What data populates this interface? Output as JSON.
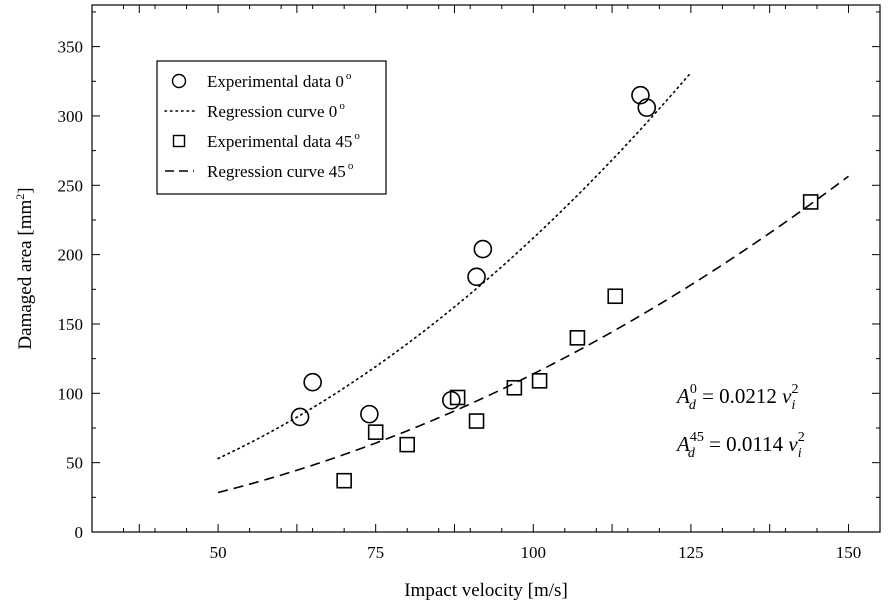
{
  "chart_data": {
    "type": "scatter",
    "xlabel": "Impact velocity [m/s]",
    "ylabel_main": "Damaged area [mm",
    "ylabel_sup": "2",
    "ylabel_end": "]",
    "xlim": [
      30,
      155
    ],
    "ylim": [
      0,
      380
    ],
    "x_ticks": [
      50,
      75,
      100,
      125,
      150
    ],
    "y_ticks": [
      0,
      50,
      100,
      150,
      200,
      250,
      300,
      350
    ],
    "grid": false,
    "legend_position": "top-left",
    "series": [
      {
        "name": "Experimental data  0",
        "name_sup": "o",
        "kind": "points",
        "marker": "circle",
        "color": "#000000",
        "x": [
          63,
          65,
          74,
          87,
          91,
          92,
          117,
          118
        ],
        "y": [
          83,
          108,
          85,
          95,
          184,
          204,
          315,
          306
        ]
      },
      {
        "name": "Regression curve  0",
        "name_sup": "o",
        "kind": "curve",
        "style": "dotted",
        "color": "#000000",
        "coef": 0.0212,
        "x_range": [
          50,
          125
        ]
      },
      {
        "name": "Experimental data 45",
        "name_sup": "o",
        "kind": "points",
        "marker": "square",
        "color": "#000000",
        "x": [
          70,
          75,
          80,
          88,
          91,
          97,
          101,
          107,
          113,
          144
        ],
        "y": [
          37,
          72,
          63,
          97,
          80,
          104,
          109,
          140,
          170,
          238
        ]
      },
      {
        "name": "Regression curve 45",
        "name_sup": "o",
        "kind": "curve",
        "style": "dashed",
        "color": "#000000",
        "coef": 0.0114,
        "x_range": [
          50,
          150
        ]
      }
    ],
    "annotations": [
      {
        "base": "A",
        "sub": "d",
        "sup": "0",
        "rest": " = 0.0212 ",
        "var": "v",
        "var_sub": "i",
        "var_sup": "2"
      },
      {
        "base": "A",
        "sub": "d",
        "sup": "45",
        "rest": " = 0.0114 ",
        "var": "v",
        "var_sub": "i",
        "var_sup": "2"
      }
    ]
  }
}
